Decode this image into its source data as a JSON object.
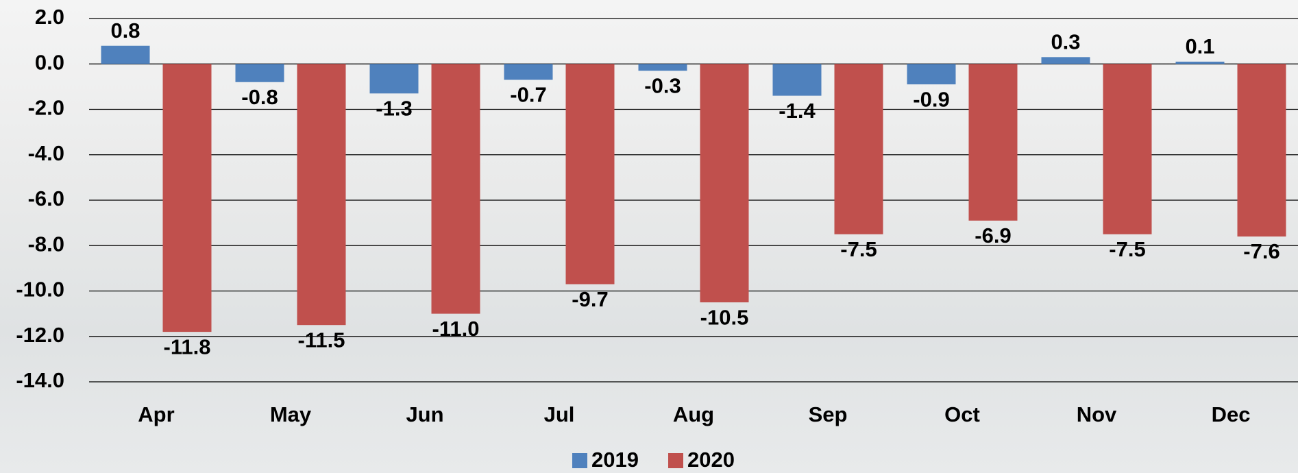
{
  "chart_data": {
    "type": "bar",
    "categories": [
      "Apr",
      "May",
      "Jun",
      "Jul",
      "Aug",
      "Sep",
      "Oct",
      "Nov",
      "Dec"
    ],
    "series": [
      {
        "name": "2019",
        "color": "#4f81bd",
        "values": [
          0.8,
          -0.8,
          -1.3,
          -0.7,
          -0.3,
          -1.4,
          -0.9,
          0.3,
          0.1
        ],
        "value_labels": [
          "0.8",
          "-0.8",
          "-1.3",
          "-0.7",
          "-0.3",
          "-1.4",
          "-0.9",
          "0.3",
          "0.1"
        ]
      },
      {
        "name": "2020",
        "color": "#c0504d",
        "values": [
          -11.8,
          -11.5,
          -11.0,
          -9.7,
          -10.5,
          -7.5,
          -6.9,
          -7.5,
          -7.6
        ],
        "value_labels": [
          "-11.8",
          "-11.5",
          "-11.0",
          "-9.7",
          "-10.5",
          "-7.5",
          "-6.9",
          "-7.5",
          "-7.6"
        ]
      }
    ],
    "ylim": [
      -14,
      2
    ],
    "yticks": [
      {
        "value": 2,
        "label": "2.0"
      },
      {
        "value": 0,
        "label": "0.0"
      },
      {
        "value": -2,
        "label": "-2.0"
      },
      {
        "value": -4,
        "label": "-4.0"
      },
      {
        "value": -6,
        "label": "-6.0"
      },
      {
        "value": -8,
        "label": "-8.0"
      },
      {
        "value": -10,
        "label": "-10.0"
      },
      {
        "value": -12,
        "label": "-12.0"
      },
      {
        "value": -14,
        "label": "-14.0"
      }
    ],
    "grid": true,
    "legend": "bottom"
  }
}
